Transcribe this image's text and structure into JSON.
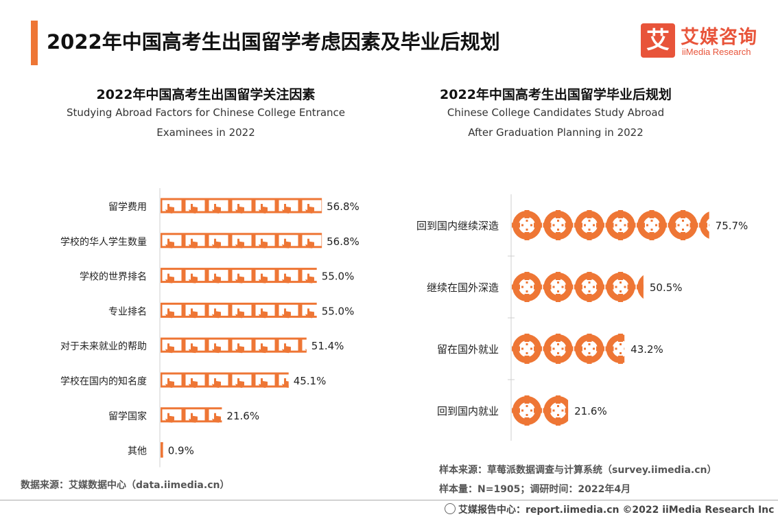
{
  "header": {
    "title": "2022年中国高考生出国留学考虑因素及毕业后规划",
    "logo_icon": "艾",
    "logo_cn": "艾媒咨询",
    "logo_en": "iiMedia Research"
  },
  "left_chart": {
    "title_cn": "2022年中国高考生出国留学关注因素",
    "title_en_1": "Studying Abroad Factors for Chinese College Entrance",
    "title_en_2": "Examinees in 2022",
    "source": "数据来源：艾媒数据中心（data.iimedia.cn）"
  },
  "right_chart": {
    "title_cn": "2022年中国高考生出国留学毕业后规划",
    "title_en_1": "Chinese College Candidates Study Abroad",
    "title_en_2": "After Graduation Planning in 2022",
    "source_line1": "样本来源：草莓派数据调查与计算系统（survey.iimedia.cn）",
    "source_line2": "样本量：N=1905；调研时间：2022年4月"
  },
  "footer": {
    "text": "艾媒报告中心：report.iimedia.cn  ©2022  iiMedia Research  Inc"
  },
  "colors": {
    "accent": "#ee7635",
    "brand": "#e8543a"
  },
  "chart_data": [
    {
      "type": "bar",
      "orientation": "horizontal",
      "icon": "hand-pointer-icon",
      "title": "2022年中国高考生出国留学关注因素",
      "categories": [
        "留学费用",
        "学校的华人学生数量",
        "学校的世界排名",
        "专业排名",
        "对于未来就业的帮助",
        "学校在国内的知名度",
        "留学国家",
        "其他"
      ],
      "values": [
        56.8,
        56.8,
        55.0,
        55.0,
        51.4,
        45.1,
        21.6,
        0.9
      ],
      "labels": [
        "56.8%",
        "56.8%",
        "55.0%",
        "55.0%",
        "51.4%",
        "45.1%",
        "21.6%",
        "0.9%"
      ],
      "unit": "%",
      "xlim": [
        0,
        100
      ]
    },
    {
      "type": "bar",
      "orientation": "horizontal",
      "icon": "target-icon",
      "title": "2022年中国高考生出国留学毕业后规划",
      "categories": [
        "回到国内继续深造",
        "继续在国外深造",
        "留在国外就业",
        "回到国内就业"
      ],
      "values": [
        75.7,
        50.5,
        43.2,
        21.6
      ],
      "labels": [
        "75.7%",
        "50.5%",
        "43.2%",
        "21.6%"
      ],
      "unit": "%",
      "xlim": [
        0,
        100
      ]
    }
  ]
}
